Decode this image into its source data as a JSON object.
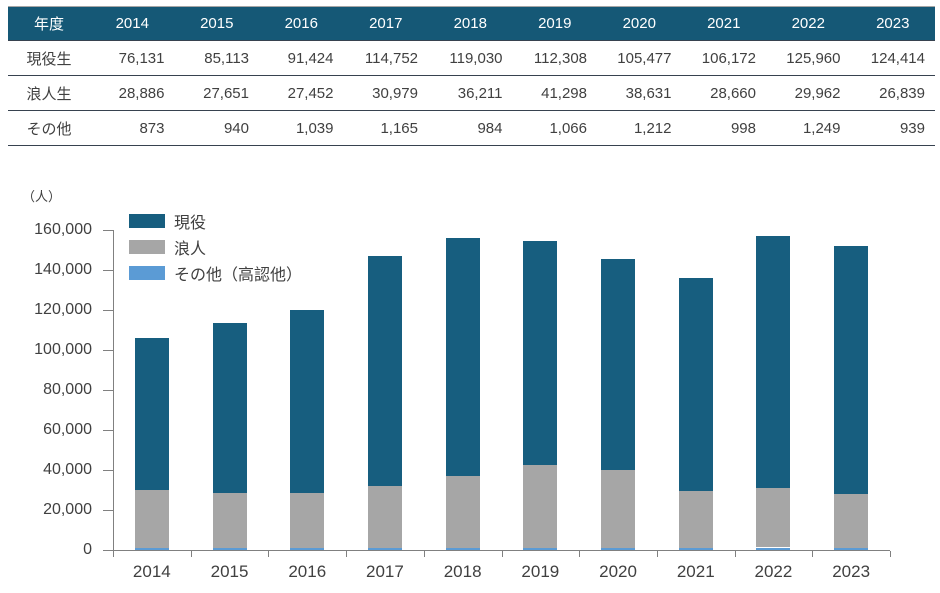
{
  "colors": {
    "table_header_bg": "#155876",
    "table_border_dark": "#37424f",
    "table_border_light": "#a6a6a6",
    "axis": "#808080",
    "text": "#404040",
    "series_genneki": "#175e7f",
    "series_ronin": "#a6a6a6",
    "series_sonota": "#5b9bd5"
  },
  "table": {
    "header": [
      "年度",
      "2014",
      "2015",
      "2016",
      "2017",
      "2018",
      "2019",
      "2020",
      "2021",
      "2022",
      "2023"
    ],
    "rows": [
      {
        "key": "genneki-sei",
        "label": "現役生",
        "values": [
          "76,131",
          "85,113",
          "91,424",
          "114,752",
          "119,030",
          "112,308",
          "105,477",
          "106,172",
          "125,960",
          "124,414"
        ]
      },
      {
        "key": "ronin-sei",
        "label": "浪人生",
        "values": [
          "28,886",
          "27,651",
          "27,452",
          "30,979",
          "36,211",
          "41,298",
          "38,631",
          "28,660",
          "29,962",
          "26,839"
        ]
      },
      {
        "key": "sonota",
        "label": "その他",
        "values": [
          "873",
          "940",
          "1,039",
          "1,165",
          "984",
          "1,066",
          "1,212",
          "998",
          "1,249",
          "939"
        ]
      }
    ]
  },
  "chart_data": {
    "type": "bar",
    "stacked": true,
    "title": "",
    "xlabel": "",
    "ylabel": "（人）",
    "categories": [
      "2014",
      "2015",
      "2016",
      "2017",
      "2018",
      "2019",
      "2020",
      "2021",
      "2022",
      "2023"
    ],
    "series": [
      {
        "key": "genneki",
        "name": "現役",
        "color": "#175e7f",
        "values": [
          76131,
          85113,
          91424,
          114752,
          119030,
          112308,
          105477,
          106172,
          125960,
          124414
        ]
      },
      {
        "key": "ronin",
        "name": "浪人",
        "color": "#a6a6a6",
        "values": [
          28886,
          27651,
          27452,
          30979,
          36211,
          41298,
          38631,
          28660,
          29962,
          26839
        ]
      },
      {
        "key": "sonota",
        "name": "その他（高認他）",
        "color": "#5b9bd5",
        "values": [
          873,
          940,
          1039,
          1165,
          984,
          1066,
          1212,
          998,
          1249,
          939
        ]
      }
    ],
    "stack_order_bottom_to_top": [
      "sonota",
      "ronin",
      "genneki"
    ],
    "ylim": [
      0,
      160000
    ],
    "ytick_step": 20000,
    "grid": false,
    "legend_position": "top-left"
  }
}
